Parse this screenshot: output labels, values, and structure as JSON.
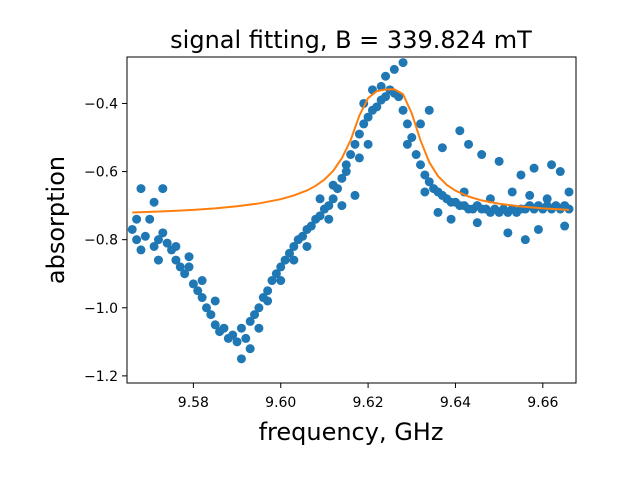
{
  "chart_data": {
    "type": "scatter",
    "title": "signal fitting, B = 339.824 mT",
    "xlabel": "frequency, GHz",
    "ylabel": "absorption",
    "xlim": [
      9.5648,
      9.6676
    ],
    "ylim": [
      -1.2209,
      -0.2636
    ],
    "xticks": [
      9.58,
      9.6,
      9.62,
      9.64,
      9.66
    ],
    "xtick_labels": [
      "9.58",
      "9.60",
      "9.62",
      "9.64",
      "9.66"
    ],
    "yticks": [
      -1.2,
      -1.0,
      -0.8,
      -0.6,
      -0.4
    ],
    "ytick_labels": [
      "−1.2",
      "−1.0",
      "−0.8",
      "−0.6",
      "−0.4"
    ],
    "grid": false,
    "series": [
      {
        "kind": "scatter",
        "color": "#1f77b4",
        "points": [
          [
            9.566,
            -0.77
          ],
          [
            9.567,
            -0.8
          ],
          [
            9.568,
            -0.83
          ],
          [
            9.569,
            -0.79
          ],
          [
            9.57,
            -0.74
          ],
          [
            9.571,
            -0.82
          ],
          [
            9.572,
            -0.86
          ],
          [
            9.573,
            -0.78
          ],
          [
            9.574,
            -0.81
          ],
          [
            9.575,
            -0.83
          ],
          [
            9.576,
            -0.86
          ],
          [
            9.577,
            -0.88
          ],
          [
            9.578,
            -0.9
          ],
          [
            9.579,
            -0.88
          ],
          [
            9.58,
            -0.93
          ],
          [
            9.581,
            -0.95
          ],
          [
            9.582,
            -0.97
          ],
          [
            9.583,
            -1.0
          ],
          [
            9.584,
            -1.02
          ],
          [
            9.585,
            -1.05
          ],
          [
            9.586,
            -1.07
          ],
          [
            9.587,
            -1.06
          ],
          [
            9.588,
            -1.09
          ],
          [
            9.589,
            -1.08
          ],
          [
            9.59,
            -1.1
          ],
          [
            9.591,
            -1.06
          ],
          [
            9.592,
            -1.09
          ],
          [
            9.593,
            -1.04
          ],
          [
            9.594,
            -1.02
          ],
          [
            9.595,
            -1.0
          ],
          [
            9.596,
            -0.97
          ],
          [
            9.597,
            -0.95
          ],
          [
            9.598,
            -0.92
          ],
          [
            9.599,
            -0.9
          ],
          [
            9.6,
            -0.88
          ],
          [
            9.601,
            -0.86
          ],
          [
            9.602,
            -0.84
          ],
          [
            9.603,
            -0.82
          ],
          [
            9.604,
            -0.8
          ],
          [
            9.605,
            -0.79
          ],
          [
            9.606,
            -0.77
          ],
          [
            9.607,
            -0.76
          ],
          [
            9.608,
            -0.74
          ],
          [
            9.609,
            -0.73
          ],
          [
            9.61,
            -0.71
          ],
          [
            9.611,
            -0.7
          ],
          [
            9.612,
            -0.68
          ],
          [
            9.613,
            -0.65
          ],
          [
            9.614,
            -0.62
          ],
          [
            9.615,
            -0.58
          ],
          [
            9.616,
            -0.55
          ],
          [
            9.617,
            -0.52
          ],
          [
            9.618,
            -0.49
          ],
          [
            9.619,
            -0.46
          ],
          [
            9.62,
            -0.44
          ],
          [
            9.621,
            -0.42
          ],
          [
            9.622,
            -0.41
          ],
          [
            9.623,
            -0.39
          ],
          [
            9.624,
            -0.38
          ],
          [
            9.625,
            -0.36
          ],
          [
            9.626,
            -0.37
          ],
          [
            9.627,
            -0.38
          ],
          [
            9.628,
            -0.42
          ],
          [
            9.629,
            -0.46
          ],
          [
            9.63,
            -0.5
          ],
          [
            9.631,
            -0.55
          ],
          [
            9.632,
            -0.58
          ],
          [
            9.633,
            -0.61
          ],
          [
            9.634,
            -0.63
          ],
          [
            9.635,
            -0.65
          ],
          [
            9.636,
            -0.66
          ],
          [
            9.637,
            -0.67
          ],
          [
            9.638,
            -0.68
          ],
          [
            9.639,
            -0.69
          ],
          [
            9.64,
            -0.69
          ],
          [
            9.641,
            -0.7
          ],
          [
            9.642,
            -0.7
          ],
          [
            9.643,
            -0.71
          ],
          [
            9.644,
            -0.71
          ],
          [
            9.645,
            -0.7
          ],
          [
            9.646,
            -0.71
          ],
          [
            9.647,
            -0.71
          ],
          [
            9.648,
            -0.72
          ],
          [
            9.649,
            -0.71
          ],
          [
            9.65,
            -0.72
          ],
          [
            9.651,
            -0.71
          ],
          [
            9.652,
            -0.72
          ],
          [
            9.653,
            -0.71
          ],
          [
            9.654,
            -0.72
          ],
          [
            9.655,
            -0.71
          ],
          [
            9.656,
            -0.71
          ],
          [
            9.657,
            -0.7
          ],
          [
            9.658,
            -0.71
          ],
          [
            9.659,
            -0.7
          ],
          [
            9.66,
            -0.71
          ],
          [
            9.661,
            -0.7
          ],
          [
            9.662,
            -0.71
          ],
          [
            9.663,
            -0.7
          ],
          [
            9.664,
            -0.71
          ],
          [
            9.665,
            -0.7
          ],
          [
            9.666,
            -0.71
          ],
          [
            9.568,
            -0.65
          ],
          [
            9.571,
            -0.69
          ],
          [
            9.573,
            -0.65
          ],
          [
            9.591,
            -1.15
          ],
          [
            9.593,
            -1.12
          ],
          [
            9.628,
            -0.28
          ],
          [
            9.626,
            -0.3
          ],
          [
            9.624,
            -0.32
          ],
          [
            9.632,
            -0.46
          ],
          [
            9.634,
            -0.42
          ],
          [
            9.637,
            -0.53
          ],
          [
            9.641,
            -0.48
          ],
          [
            9.643,
            -0.52
          ],
          [
            9.646,
            -0.55
          ],
          [
            9.65,
            -0.57
          ],
          [
            9.655,
            -0.61
          ],
          [
            9.658,
            -0.59
          ],
          [
            9.662,
            -0.58
          ],
          [
            9.664,
            -0.6
          ],
          [
            9.645,
            -0.75
          ],
          [
            9.652,
            -0.78
          ],
          [
            9.656,
            -0.8
          ],
          [
            9.659,
            -0.77
          ],
          [
            9.665,
            -0.76
          ],
          [
            9.617,
            -0.67
          ],
          [
            9.614,
            -0.7
          ],
          [
            9.611,
            -0.74
          ],
          [
            9.606,
            -0.82
          ],
          [
            9.603,
            -0.86
          ],
          [
            9.6,
            -0.92
          ],
          [
            9.597,
            -0.98
          ],
          [
            9.595,
            -1.06
          ],
          [
            9.585,
            -0.98
          ],
          [
            9.582,
            -0.92
          ],
          [
            9.579,
            -0.85
          ],
          [
            9.576,
            -0.82
          ],
          [
            9.572,
            -0.8
          ],
          [
            9.567,
            -0.74
          ],
          [
            9.609,
            -0.68
          ],
          [
            9.612,
            -0.64
          ],
          [
            9.615,
            -0.6
          ],
          [
            9.618,
            -0.56
          ],
          [
            9.62,
            -0.52
          ],
          [
            9.621,
            -0.36
          ],
          [
            9.619,
            -0.4
          ],
          [
            9.623,
            -0.35
          ],
          [
            9.629,
            -0.52
          ],
          [
            9.633,
            -0.66
          ],
          [
            9.636,
            -0.72
          ],
          [
            9.639,
            -0.74
          ],
          [
            9.642,
            -0.66
          ],
          [
            9.648,
            -0.68
          ],
          [
            9.653,
            -0.66
          ],
          [
            9.657,
            -0.67
          ],
          [
            9.661,
            -0.68
          ],
          [
            9.666,
            -0.66
          ]
        ]
      },
      {
        "kind": "line",
        "color": "#ff7f0e",
        "points": [
          [
            9.566,
            -0.7201
          ],
          [
            9.57,
            -0.7184
          ],
          [
            9.575,
            -0.7158
          ],
          [
            9.58,
            -0.7124
          ],
          [
            9.585,
            -0.708
          ],
          [
            9.59,
            -0.702
          ],
          [
            9.595,
            -0.6936
          ],
          [
            9.6,
            -0.6812
          ],
          [
            9.603,
            -0.6701
          ],
          [
            9.606,
            -0.6555
          ],
          [
            9.608,
            -0.6419
          ],
          [
            9.61,
            -0.6235
          ],
          [
            9.612,
            -0.5978
          ],
          [
            9.614,
            -0.5609
          ],
          [
            9.616,
            -0.5079
          ],
          [
            9.618,
            -0.4357
          ],
          [
            9.62,
            -0.3843
          ],
          [
            9.622,
            -0.3637
          ],
          [
            9.624,
            -0.3591
          ],
          [
            9.626,
            -0.3583
          ],
          [
            9.628,
            -0.3728
          ],
          [
            9.63,
            -0.4292
          ],
          [
            9.632,
            -0.5087
          ],
          [
            9.634,
            -0.5723
          ],
          [
            9.636,
            -0.6133
          ],
          [
            9.638,
            -0.6391
          ],
          [
            9.64,
            -0.6561
          ],
          [
            9.643,
            -0.6733
          ],
          [
            9.646,
            -0.6847
          ],
          [
            9.65,
            -0.6945
          ],
          [
            9.655,
            -0.7025
          ],
          [
            9.66,
            -0.708
          ],
          [
            9.666,
            -0.7125
          ]
        ]
      }
    ]
  }
}
